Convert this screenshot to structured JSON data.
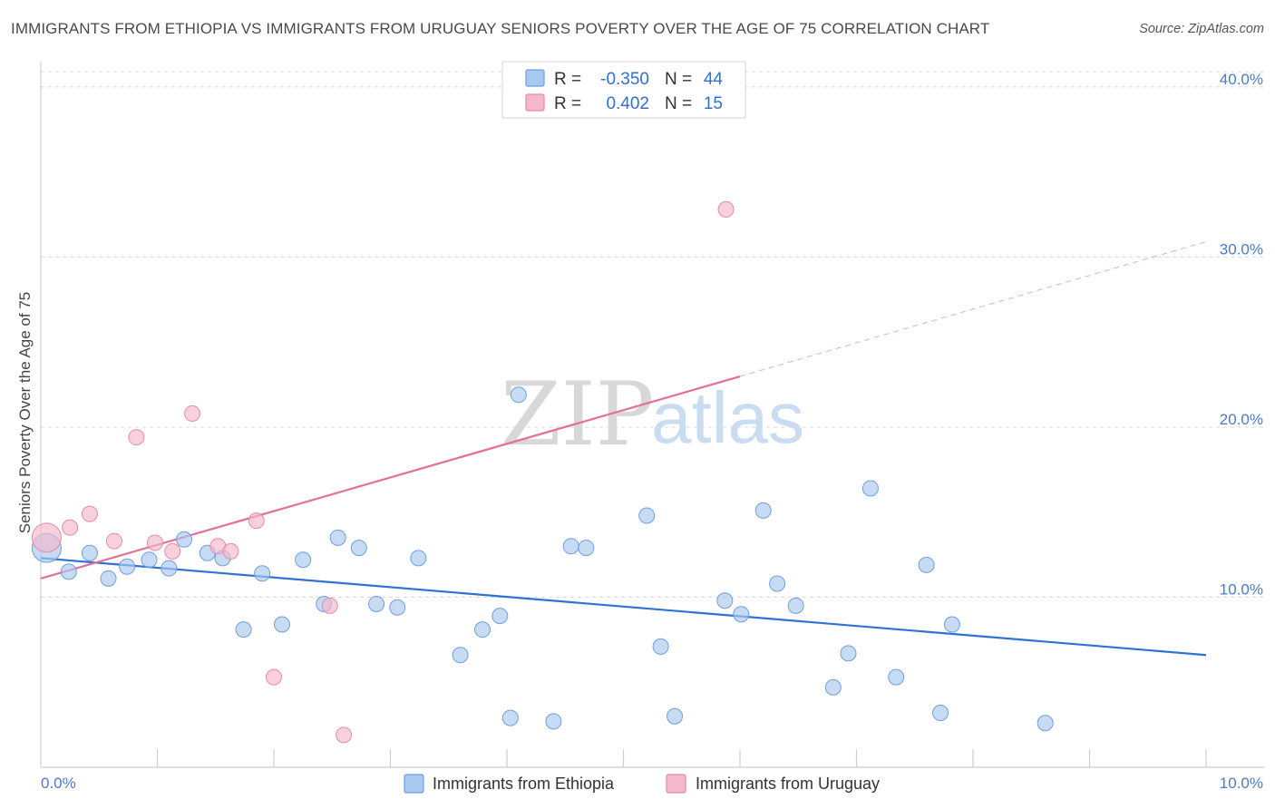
{
  "title": "IMMIGRANTS FROM ETHIOPIA VS IMMIGRANTS FROM URUGUAY SENIORS POVERTY OVER THE AGE OF 75 CORRELATION CHART",
  "source": "Source: ZipAtlas.com",
  "watermark": {
    "zip": "ZIP",
    "atlas": "atlas"
  },
  "legend_box": {
    "rows": [
      {
        "r_label": "R =",
        "r_value": "-0.350",
        "n_label": "N =",
        "n_value": "44",
        "color": "#a9c8ef"
      },
      {
        "r_label": "R =",
        "r_value": "0.402",
        "n_label": "N =",
        "n_value": "15",
        "color": "#f5b8cb"
      }
    ]
  },
  "colors": {
    "ethiopia_fill": "#a9c8ef",
    "ethiopia_stroke": "#6f9fdc",
    "ethiopia_line": "#2f72d4",
    "uruguay_fill": "#f5b8cb",
    "uruguay_stroke": "#e88aa6",
    "uruguay_line": "#e46f95",
    "grid": "#d8d8d8",
    "tick_text": "#4a7cc9"
  },
  "chart_data": {
    "type": "scatter",
    "title": "IMMIGRANTS FROM ETHIOPIA VS IMMIGRANTS FROM URUGUAY SENIORS POVERTY OVER THE AGE OF 75 CORRELATION CHART",
    "xlabel": "",
    "ylabel": "Seniors Poverty Over the Age of 75",
    "xlim": [
      0,
      10
    ],
    "ylim": [
      0,
      40
    ],
    "x_tick_labels": [
      "0.0%",
      "10.0%"
    ],
    "y_ticks": [
      10,
      20,
      30,
      40
    ],
    "y_tick_labels": [
      "10.0%",
      "20.0%",
      "30.0%",
      "40.0%"
    ],
    "grid": true,
    "legend_position": "bottom",
    "series": [
      {
        "name": "Immigrants from Ethiopia",
        "r": -0.35,
        "n": 44,
        "trend": {
          "x": [
            0,
            10
          ],
          "y": [
            12.3,
            6.6
          ]
        },
        "points": [
          [
            0.05,
            12.9,
            3
          ],
          [
            0.24,
            11.5,
            1
          ],
          [
            0.42,
            12.6,
            1
          ],
          [
            0.58,
            11.1,
            1
          ],
          [
            0.74,
            11.8,
            1
          ],
          [
            0.93,
            12.2,
            1
          ],
          [
            1.1,
            11.7,
            1
          ],
          [
            1.23,
            13.4,
            1
          ],
          [
            1.43,
            12.6,
            1
          ],
          [
            1.56,
            12.3,
            1
          ],
          [
            1.74,
            8.1,
            1
          ],
          [
            1.9,
            11.4,
            1
          ],
          [
            2.07,
            8.4,
            1
          ],
          [
            2.25,
            12.2,
            1
          ],
          [
            2.43,
            9.6,
            1
          ],
          [
            2.55,
            13.5,
            1
          ],
          [
            2.73,
            12.9,
            1
          ],
          [
            2.88,
            9.6,
            1
          ],
          [
            3.06,
            9.4,
            1
          ],
          [
            3.24,
            12.3,
            1
          ],
          [
            3.6,
            6.6,
            1
          ],
          [
            3.79,
            8.1,
            1
          ],
          [
            3.94,
            8.9,
            1
          ],
          [
            4.03,
            2.9,
            1
          ],
          [
            4.1,
            21.9,
            1
          ],
          [
            4.4,
            2.7,
            1
          ],
          [
            4.55,
            13.0,
            1
          ],
          [
            4.68,
            12.9,
            1
          ],
          [
            5.2,
            14.8,
            1
          ],
          [
            5.32,
            7.1,
            1
          ],
          [
            5.44,
            3.0,
            1
          ],
          [
            5.87,
            9.8,
            1
          ],
          [
            6.01,
            9.0,
            1
          ],
          [
            6.2,
            15.1,
            1
          ],
          [
            6.32,
            10.8,
            1
          ],
          [
            6.48,
            9.5,
            1
          ],
          [
            6.8,
            4.7,
            1
          ],
          [
            6.93,
            6.7,
            1
          ],
          [
            7.12,
            16.4,
            1
          ],
          [
            7.34,
            5.3,
            1
          ],
          [
            7.6,
            11.9,
            1
          ],
          [
            7.72,
            3.2,
            1
          ],
          [
            7.82,
            8.4,
            1
          ],
          [
            8.62,
            2.6,
            1
          ]
        ]
      },
      {
        "name": "Immigrants from Uruguay",
        "r": 0.402,
        "n": 15,
        "trend": {
          "x": [
            0,
            10
          ],
          "y": [
            11.1,
            30.9
          ],
          "solid_until_x": 6.0
        },
        "points": [
          [
            0.05,
            13.5,
            3
          ],
          [
            0.25,
            14.1,
            1
          ],
          [
            0.42,
            14.9,
            1
          ],
          [
            0.63,
            13.3,
            1
          ],
          [
            0.82,
            19.4,
            1
          ],
          [
            0.98,
            13.2,
            1
          ],
          [
            1.13,
            12.7,
            1
          ],
          [
            1.3,
            20.8,
            1
          ],
          [
            1.52,
            13.0,
            1
          ],
          [
            1.63,
            12.7,
            1
          ],
          [
            1.85,
            14.5,
            1
          ],
          [
            2.0,
            5.3,
            1
          ],
          [
            2.48,
            9.5,
            1
          ],
          [
            2.6,
            1.9,
            1
          ],
          [
            5.88,
            32.8,
            1
          ]
        ]
      }
    ]
  }
}
